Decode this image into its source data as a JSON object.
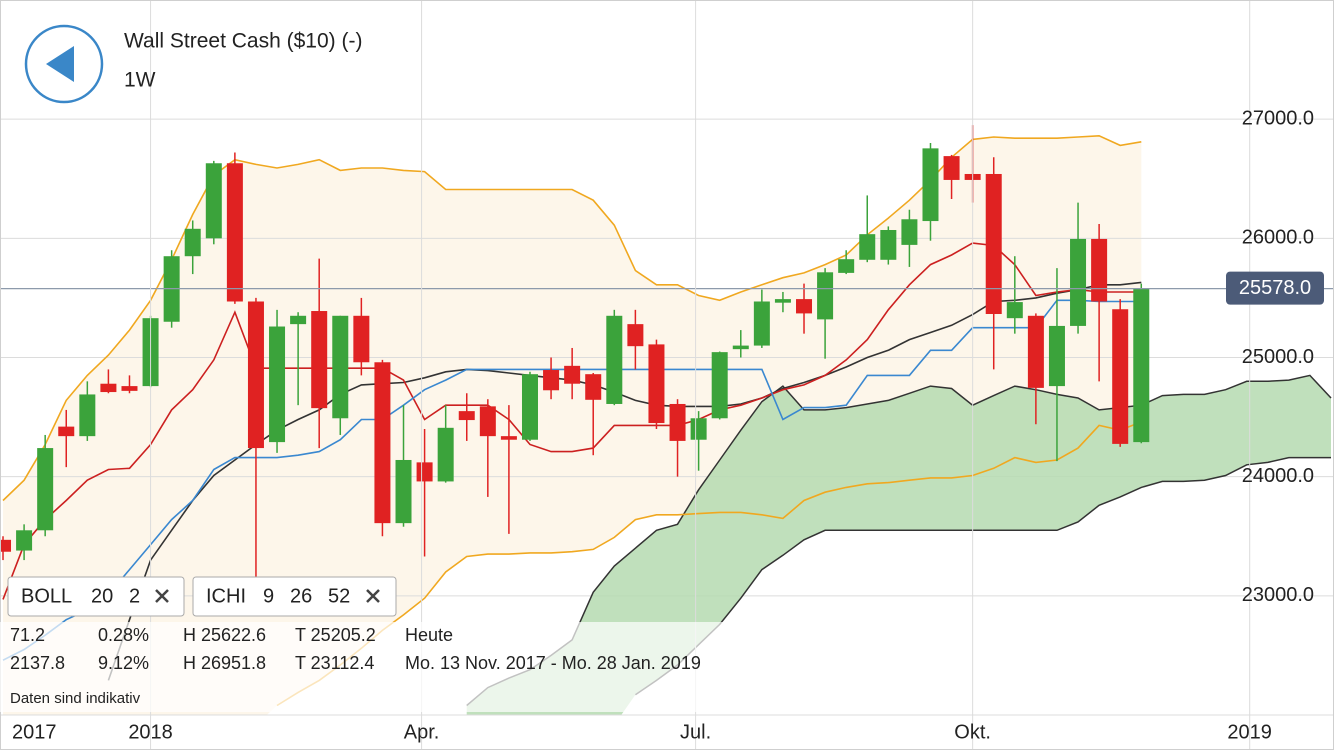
{
  "chart_data": {
    "type": "candlestick",
    "title": "Wall Street Cash ($10) (-)",
    "subtitle": "1W",
    "x": [
      "2017-11-13",
      "2017-11-20",
      "2017-11-27",
      "2017-12-04",
      "2017-12-11",
      "2017-12-18",
      "2017-12-25",
      "2018-01-01",
      "2018-01-08",
      "2018-01-15",
      "2018-01-22",
      "2018-01-29",
      "2018-02-05",
      "2018-02-12",
      "2018-02-19",
      "2018-02-26",
      "2018-03-05",
      "2018-03-12",
      "2018-03-19",
      "2018-03-26",
      "2018-04-02",
      "2018-04-09",
      "2018-04-16",
      "2018-04-23",
      "2018-04-30",
      "2018-05-07",
      "2018-05-14",
      "2018-05-21",
      "2018-05-28",
      "2018-06-04",
      "2018-06-11",
      "2018-06-18",
      "2018-06-25",
      "2018-07-02",
      "2018-07-09",
      "2018-07-16",
      "2018-07-23",
      "2018-07-30",
      "2018-08-06",
      "2018-08-13",
      "2018-08-20",
      "2018-08-27",
      "2018-09-03",
      "2018-09-10",
      "2018-09-17",
      "2018-09-24",
      "2018-10-01",
      "2018-10-08",
      "2018-10-15",
      "2018-10-22",
      "2018-10-29",
      "2018-11-05",
      "2018-11-12",
      "2018-11-19",
      "2018-11-26"
    ],
    "open": [
      23470,
      23380,
      23550,
      24420,
      24340,
      24780,
      24760,
      24760,
      25300,
      25850,
      26000,
      26630,
      25470,
      24290,
      25280,
      25390,
      24490,
      25350,
      24960,
      23610,
      24120,
      23960,
      24550,
      24590,
      24340,
      24310,
      24895,
      24930,
      24860,
      24610,
      25280,
      25110,
      24610,
      24310,
      24490,
      25070,
      25100,
      25460,
      25490,
      25320,
      25710,
      25820,
      25820,
      25945,
      26145,
      26690,
      26540,
      26540,
      25330,
      25350,
      24760,
      25265,
      25995,
      25405,
      24290
    ],
    "high": [
      23500,
      23600,
      24350,
      24560,
      24800,
      24900,
      24850,
      25350,
      25900,
      26150,
      26650,
      26720,
      25500,
      25400,
      25380,
      25830,
      25350,
      25500,
      24980,
      24600,
      24400,
      24600,
      24700,
      24650,
      24600,
      24880,
      25000,
      25080,
      24870,
      25400,
      25400,
      25150,
      24650,
      24550,
      25050,
      25230,
      25570,
      25550,
      25620,
      25750,
      25900,
      26360,
      26100,
      26240,
      26800,
      26700,
      26950,
      26680,
      25850,
      25370,
      25750,
      26300,
      26120,
      25490,
      25620
    ],
    "low": [
      23300,
      23300,
      23500,
      24080,
      24300,
      24700,
      24700,
      24750,
      25250,
      25700,
      25950,
      25450,
      23100,
      24200,
      24600,
      24240,
      24350,
      24850,
      23500,
      23580,
      23330,
      23950,
      24300,
      23830,
      23520,
      24300,
      24650,
      24650,
      24180,
      24600,
      24900,
      24400,
      24000,
      24050,
      24480,
      25000,
      25080,
      25380,
      25200,
      24990,
      25700,
      25800,
      25780,
      25760,
      25980,
      26330,
      26300,
      24900,
      25200,
      24440,
      24130,
      25200,
      24800,
      24250,
      24280
    ],
    "close": [
      23370,
      23550,
      24240,
      24340,
      24690,
      24710,
      24720,
      25330,
      25850,
      26080,
      26630,
      25470,
      24240,
      25260,
      25350,
      24575,
      25350,
      24960,
      23610,
      24140,
      23960,
      24410,
      24475,
      24340,
      24310,
      24860,
      24725,
      24780,
      24645,
      25350,
      25095,
      24450,
      24300,
      24490,
      25045,
      25100,
      25470,
      25490,
      25370,
      25715,
      25825,
      26035,
      26070,
      26160,
      26755,
      26490,
      26490,
      25365,
      25465,
      24745,
      25265,
      25995,
      25470,
      24275,
      25578
    ],
    "up_color": "#3ba33b",
    "down_color": "#e02222",
    "series": [
      {
        "color": "#f0a820",
        "values": [
          23800,
          23970,
          24270,
          24640,
          24850,
          25020,
          25230,
          25480,
          25820,
          26200,
          26530,
          26660,
          26620,
          26590,
          26620,
          26660,
          26570,
          26590,
          26590,
          26570,
          26560,
          26410,
          26410,
          26410,
          26410,
          26410,
          26410,
          26410,
          26320,
          26110,
          25730,
          25610,
          25610,
          25520,
          25480,
          25550,
          25610,
          25670,
          25710,
          25780,
          25860,
          26030,
          26170,
          26320,
          26490,
          26680,
          26830,
          26850,
          26840,
          26840,
          26840,
          26850,
          26860,
          26780,
          26810
        ]
      },
      {
        "color": "#f0a820",
        "values": [
          null,
          null,
          null,
          null,
          null,
          null,
          null,
          null,
          null,
          null,
          null,
          null,
          null,
          22080,
          22190,
          22290,
          22420,
          22560,
          22710,
          22840,
          22980,
          23200,
          23330,
          23350,
          23350,
          23360,
          23360,
          23370,
          23390,
          23490,
          23640,
          23680,
          23680,
          23690,
          23700,
          23700,
          23680,
          23650,
          23800,
          23870,
          23910,
          23940,
          23950,
          23970,
          23990,
          23990,
          24010,
          24070,
          24160,
          24120,
          24140,
          24240,
          24430,
          24390,
          24460
        ]
      },
      {
        "color": "#333333",
        "values": [
          null,
          null,
          null,
          null,
          null,
          22290,
          22800,
          23300,
          23550,
          23800,
          24010,
          24140,
          24270,
          24390,
          24480,
          24560,
          24690,
          24770,
          24780,
          24790,
          24830,
          24880,
          24900,
          24890,
          24870,
          24850,
          24830,
          24810,
          24770,
          24710,
          24640,
          24600,
          24590,
          24590,
          24590,
          24610,
          24660,
          24740,
          24790,
          24850,
          24920,
          25000,
          25060,
          25150,
          25210,
          25270,
          25360,
          25470,
          25480,
          25500,
          25540,
          25570,
          25610,
          25610,
          25630
        ]
      },
      {
        "color": "#cc2020",
        "values": [
          22970,
          23430,
          23640,
          23800,
          23970,
          24060,
          24070,
          24270,
          24560,
          24730,
          24980,
          25380,
          24910,
          24910,
          24910,
          24910,
          24910,
          24910,
          24910,
          24810,
          24480,
          24600,
          24600,
          24600,
          24480,
          24270,
          24210,
          24210,
          24240,
          24430,
          24430,
          24430,
          24430,
          24480,
          24560,
          24600,
          24660,
          24730,
          24770,
          24850,
          24980,
          25150,
          25400,
          25610,
          25780,
          25860,
          25960,
          25940,
          25780,
          25520,
          25550,
          25570,
          25550,
          25550,
          25550
        ]
      },
      {
        "color": "#3a88d0",
        "values": [
          22460,
          22550,
          22670,
          22800,
          22880,
          23010,
          23220,
          23430,
          23640,
          23800,
          24060,
          24160,
          24160,
          24160,
          24180,
          24210,
          24310,
          24480,
          24480,
          24600,
          24730,
          24810,
          24900,
          24900,
          24900,
          24900,
          24900,
          24900,
          24900,
          24900,
          24900,
          24900,
          24900,
          24900,
          24900,
          24900,
          24900,
          24480,
          24580,
          24580,
          24600,
          24850,
          24850,
          24850,
          25060,
          25060,
          25250,
          25250,
          25250,
          25250,
          25480,
          25480,
          25470,
          25470,
          25470
        ]
      }
    ],
    "band_color": "#fdf6ea",
    "cloud": {
      "color": "#b5dbb0",
      "x": [
        "2018-04-16",
        "2018-04-23",
        "2018-04-30",
        "2018-05-07",
        "2018-05-14",
        "2018-05-21",
        "2018-05-28",
        "2018-06-04",
        "2018-06-11",
        "2018-06-18",
        "2018-06-25",
        "2018-07-02",
        "2018-07-09",
        "2018-07-16",
        "2018-07-23",
        "2018-07-30",
        "2018-08-06",
        "2018-08-13",
        "2018-08-20",
        "2018-08-27",
        "2018-09-03",
        "2018-09-10",
        "2018-09-17",
        "2018-09-24",
        "2018-10-01",
        "2018-10-08",
        "2018-10-15",
        "2018-10-22",
        "2018-10-29",
        "2018-11-05",
        "2018-11-12",
        "2018-11-19",
        "2018-11-26",
        "2018-12-03",
        "2018-12-10",
        "2018-12-17",
        "2018-12-24",
        "2018-12-31",
        "2019-01-07",
        "2019-01-14",
        "2019-01-21",
        "2019-01-28"
      ],
      "upper": [
        22080,
        22230,
        22310,
        22380,
        22500,
        22630,
        23030,
        23250,
        23400,
        23550,
        23600,
        23890,
        24140,
        24390,
        24630,
        24760,
        24560,
        24560,
        24580,
        24610,
        24640,
        24700,
        24760,
        24740,
        24600,
        24680,
        24760,
        24730,
        24690,
        24660,
        24560,
        24580,
        24600,
        24680,
        24690,
        24690,
        24730,
        24800,
        24800,
        24810,
        24850,
        24660
      ],
      "lower": [
        null,
        null,
        null,
        null,
        null,
        null,
        null,
        null,
        22170,
        22290,
        22420,
        22590,
        22760,
        22980,
        23220,
        23340,
        23470,
        23550,
        23550,
        23550,
        23550,
        23550,
        23550,
        23550,
        23550,
        23550,
        23550,
        23550,
        23550,
        23620,
        23760,
        23830,
        23910,
        23960,
        23960,
        23970,
        24010,
        24100,
        24120,
        24160,
        24160,
        24160
      ]
    },
    "last_price": {
      "value": 25578,
      "label": "25578.0"
    },
    "ylim": [
      22000,
      28000
    ],
    "yticks": [
      {
        "value": 23000,
        "label": "23000.0"
      },
      {
        "value": 24000,
        "label": "24000.0"
      },
      {
        "value": 25000,
        "label": "25000.0"
      },
      {
        "value": 26000,
        "label": "26000.0"
      },
      {
        "value": 27000,
        "label": "27000.0"
      }
    ],
    "xlim": [
      "2017-11-12",
      "2019-01-29"
    ],
    "x_start_label": "2017",
    "xticks": [
      {
        "value": "2018-01-01",
        "label": "2018"
      },
      {
        "value": "2018-04-01",
        "label": "Apr."
      },
      {
        "value": "2018-07-01",
        "label": "Jul."
      },
      {
        "value": "2018-10-01",
        "label": "Okt."
      },
      {
        "value": "2019-01-01",
        "label": "2019"
      }
    ],
    "grid": true
  },
  "ui": {
    "indicators": [
      {
        "name": "BOLL",
        "params": [
          20,
          2
        ]
      },
      {
        "name": "ICHI",
        "params": [
          9,
          26,
          52
        ]
      }
    ],
    "stats": [
      [
        "71.2",
        "0.28%",
        "H 25622.6",
        "T 25205.2",
        "Heute"
      ],
      [
        "2137.8",
        "9.12%",
        "H 26951.8",
        "T 23112.4",
        "Mo. 13 Nov. 2017 - Mo. 28 Jan. 2019"
      ]
    ],
    "disclaimer": "Daten sind indikativ"
  }
}
